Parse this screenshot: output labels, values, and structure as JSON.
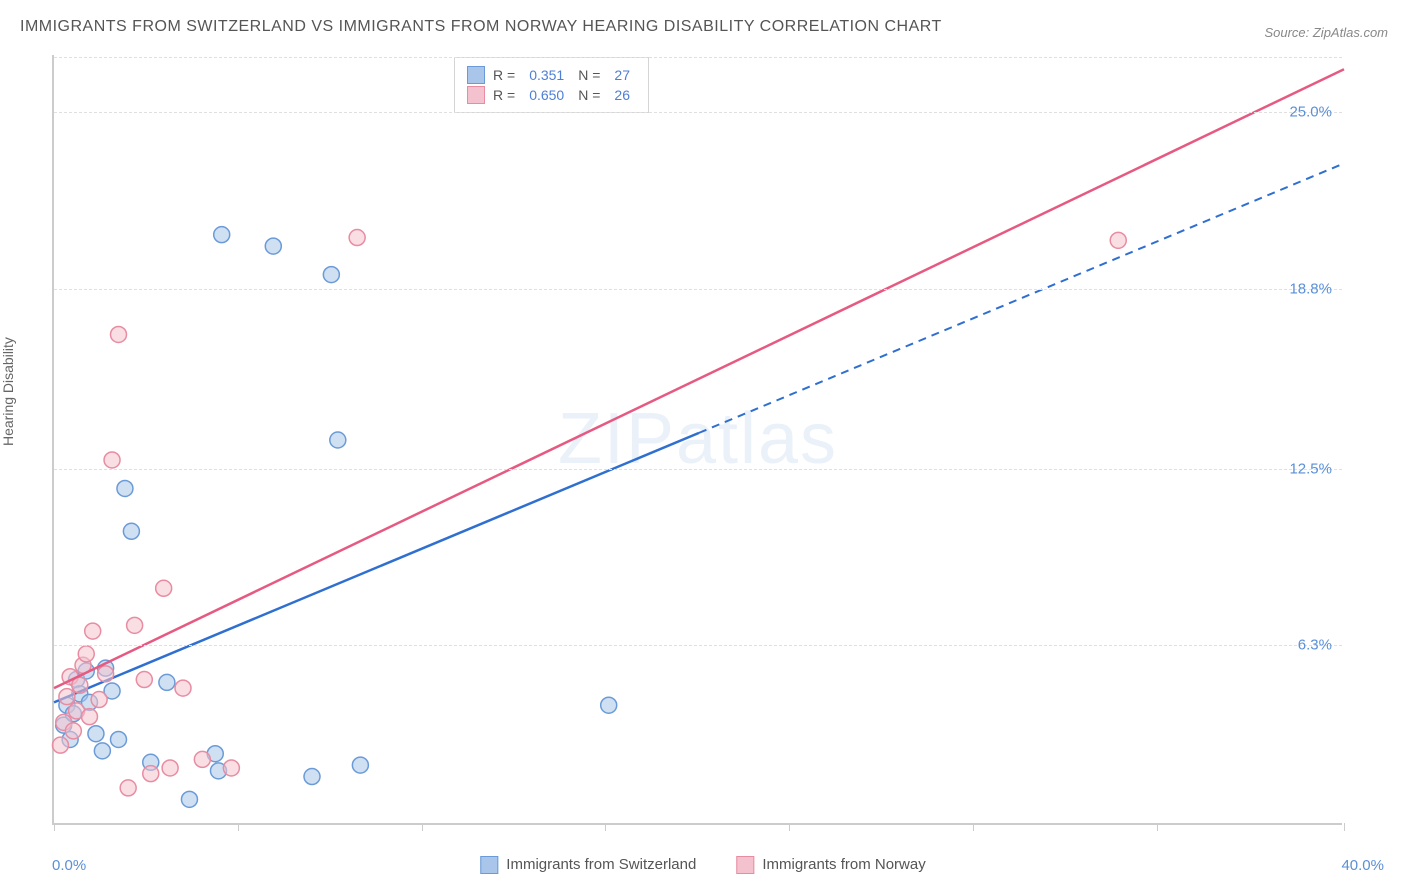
{
  "title": "IMMIGRANTS FROM SWITZERLAND VS IMMIGRANTS FROM NORWAY HEARING DISABILITY CORRELATION CHART",
  "source": "Source: ZipAtlas.com",
  "watermark": "ZIPatlas",
  "ylabel": "Hearing Disability",
  "chart": {
    "type": "scatter",
    "xlim": [
      0,
      40
    ],
    "ylim": [
      0,
      27
    ],
    "x_min_label": "0.0%",
    "x_max_label": "40.0%",
    "y_ticks": [
      6.3,
      12.5,
      18.8,
      25.0
    ],
    "y_tick_labels": [
      "6.3%",
      "12.5%",
      "18.8%",
      "25.0%"
    ],
    "x_tick_positions": [
      0,
      5.7,
      11.4,
      17.1,
      22.8,
      28.5,
      34.2,
      40
    ],
    "grid_color": "#e0e0e0",
    "background_color": "#ffffff",
    "point_radius": 8,
    "point_opacity": 0.55,
    "series": [
      {
        "name": "Immigrants from Switzerland",
        "fill": "#a9c6ea",
        "stroke": "#6a9bd8",
        "line_color": "#2f6fd0",
        "line_solid_until_x": 20,
        "R": "0.351",
        "N": "27",
        "trend": {
          "x1": 0,
          "y1": 4.3,
          "x2": 40,
          "y2": 23.2
        },
        "points": [
          [
            0.3,
            3.5
          ],
          [
            0.4,
            4.2
          ],
          [
            0.5,
            3.0
          ],
          [
            0.6,
            3.9
          ],
          [
            0.7,
            5.1
          ],
          [
            0.8,
            4.6
          ],
          [
            1.0,
            5.4
          ],
          [
            1.1,
            4.3
          ],
          [
            1.3,
            3.2
          ],
          [
            1.5,
            2.6
          ],
          [
            1.6,
            5.5
          ],
          [
            1.8,
            4.7
          ],
          [
            2.0,
            3.0
          ],
          [
            2.2,
            11.8
          ],
          [
            2.4,
            10.3
          ],
          [
            3.0,
            2.2
          ],
          [
            3.5,
            5.0
          ],
          [
            4.2,
            0.9
          ],
          [
            5.0,
            2.5
          ],
          [
            5.1,
            1.9
          ],
          [
            5.2,
            20.7
          ],
          [
            6.8,
            20.3
          ],
          [
            8.0,
            1.7
          ],
          [
            8.6,
            19.3
          ],
          [
            8.8,
            13.5
          ],
          [
            9.5,
            2.1
          ],
          [
            17.2,
            4.2
          ]
        ]
      },
      {
        "name": "Immigrants from Norway",
        "fill": "#f4c2ce",
        "stroke": "#e88ca2",
        "line_color": "#e65a82",
        "line_solid_until_x": 40,
        "R": "0.650",
        "N": "26",
        "trend": {
          "x1": 0,
          "y1": 4.8,
          "x2": 40,
          "y2": 26.5
        },
        "points": [
          [
            0.2,
            2.8
          ],
          [
            0.3,
            3.6
          ],
          [
            0.4,
            4.5
          ],
          [
            0.5,
            5.2
          ],
          [
            0.6,
            3.3
          ],
          [
            0.7,
            4.0
          ],
          [
            0.8,
            4.9
          ],
          [
            0.9,
            5.6
          ],
          [
            1.0,
            6.0
          ],
          [
            1.1,
            3.8
          ],
          [
            1.2,
            6.8
          ],
          [
            1.4,
            4.4
          ],
          [
            1.6,
            5.3
          ],
          [
            1.8,
            12.8
          ],
          [
            2.0,
            17.2
          ],
          [
            2.3,
            1.3
          ],
          [
            2.5,
            7.0
          ],
          [
            2.8,
            5.1
          ],
          [
            3.0,
            1.8
          ],
          [
            3.4,
            8.3
          ],
          [
            3.6,
            2.0
          ],
          [
            4.0,
            4.8
          ],
          [
            4.6,
            2.3
          ],
          [
            5.5,
            2.0
          ],
          [
            9.4,
            20.6
          ],
          [
            33.0,
            20.5
          ]
        ]
      }
    ]
  },
  "legend_stats_label_R": "R =",
  "legend_stats_label_N": "N ="
}
